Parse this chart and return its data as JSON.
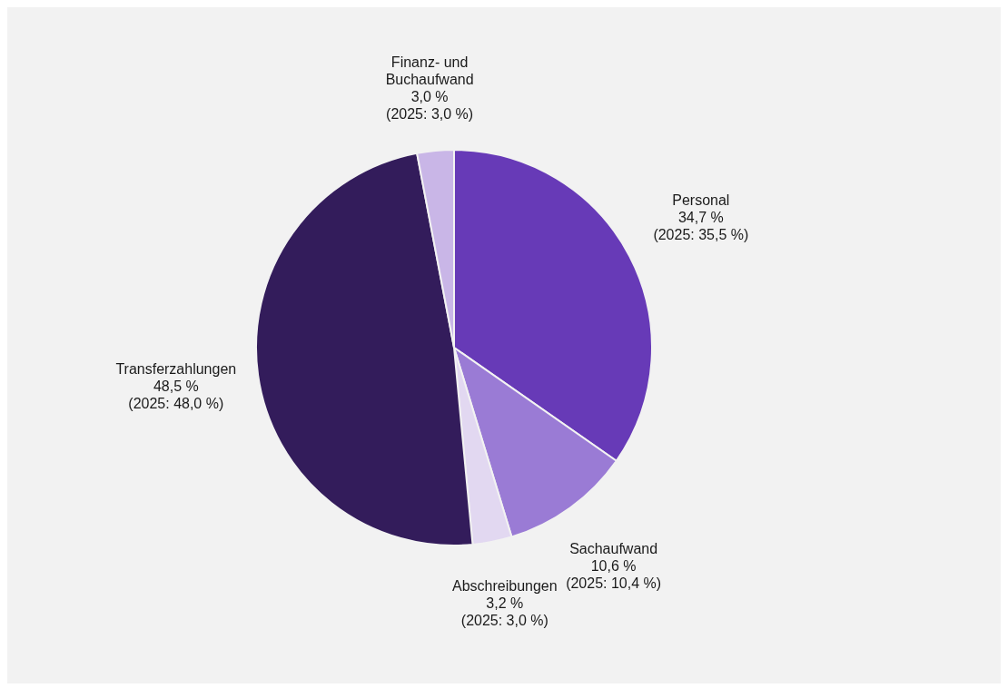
{
  "chart_data": {
    "type": "pie",
    "categories": [
      "Personal",
      "Sachaufwand",
      "Abschreibungen",
      "Transferzahlungen",
      "Finanz- und Buchaufwand"
    ],
    "values": [
      34.7,
      10.6,
      3.2,
      48.5,
      3.0
    ],
    "value_labels": [
      "34,7 %",
      "10,6 %",
      "3,2 %",
      "48,5 %",
      "3,0 %"
    ],
    "annotations": [
      "(2025: 35,5 %)",
      "(2025: 10,4 %)",
      "(2025: 3,0 %)",
      "(2025: 48,0 %)",
      "(2025: 3,0 %)"
    ],
    "colors": [
      "#673ab7",
      "#9a7bd5",
      "#e2d8f1",
      "#331c5b",
      "#c9b6e7"
    ]
  }
}
